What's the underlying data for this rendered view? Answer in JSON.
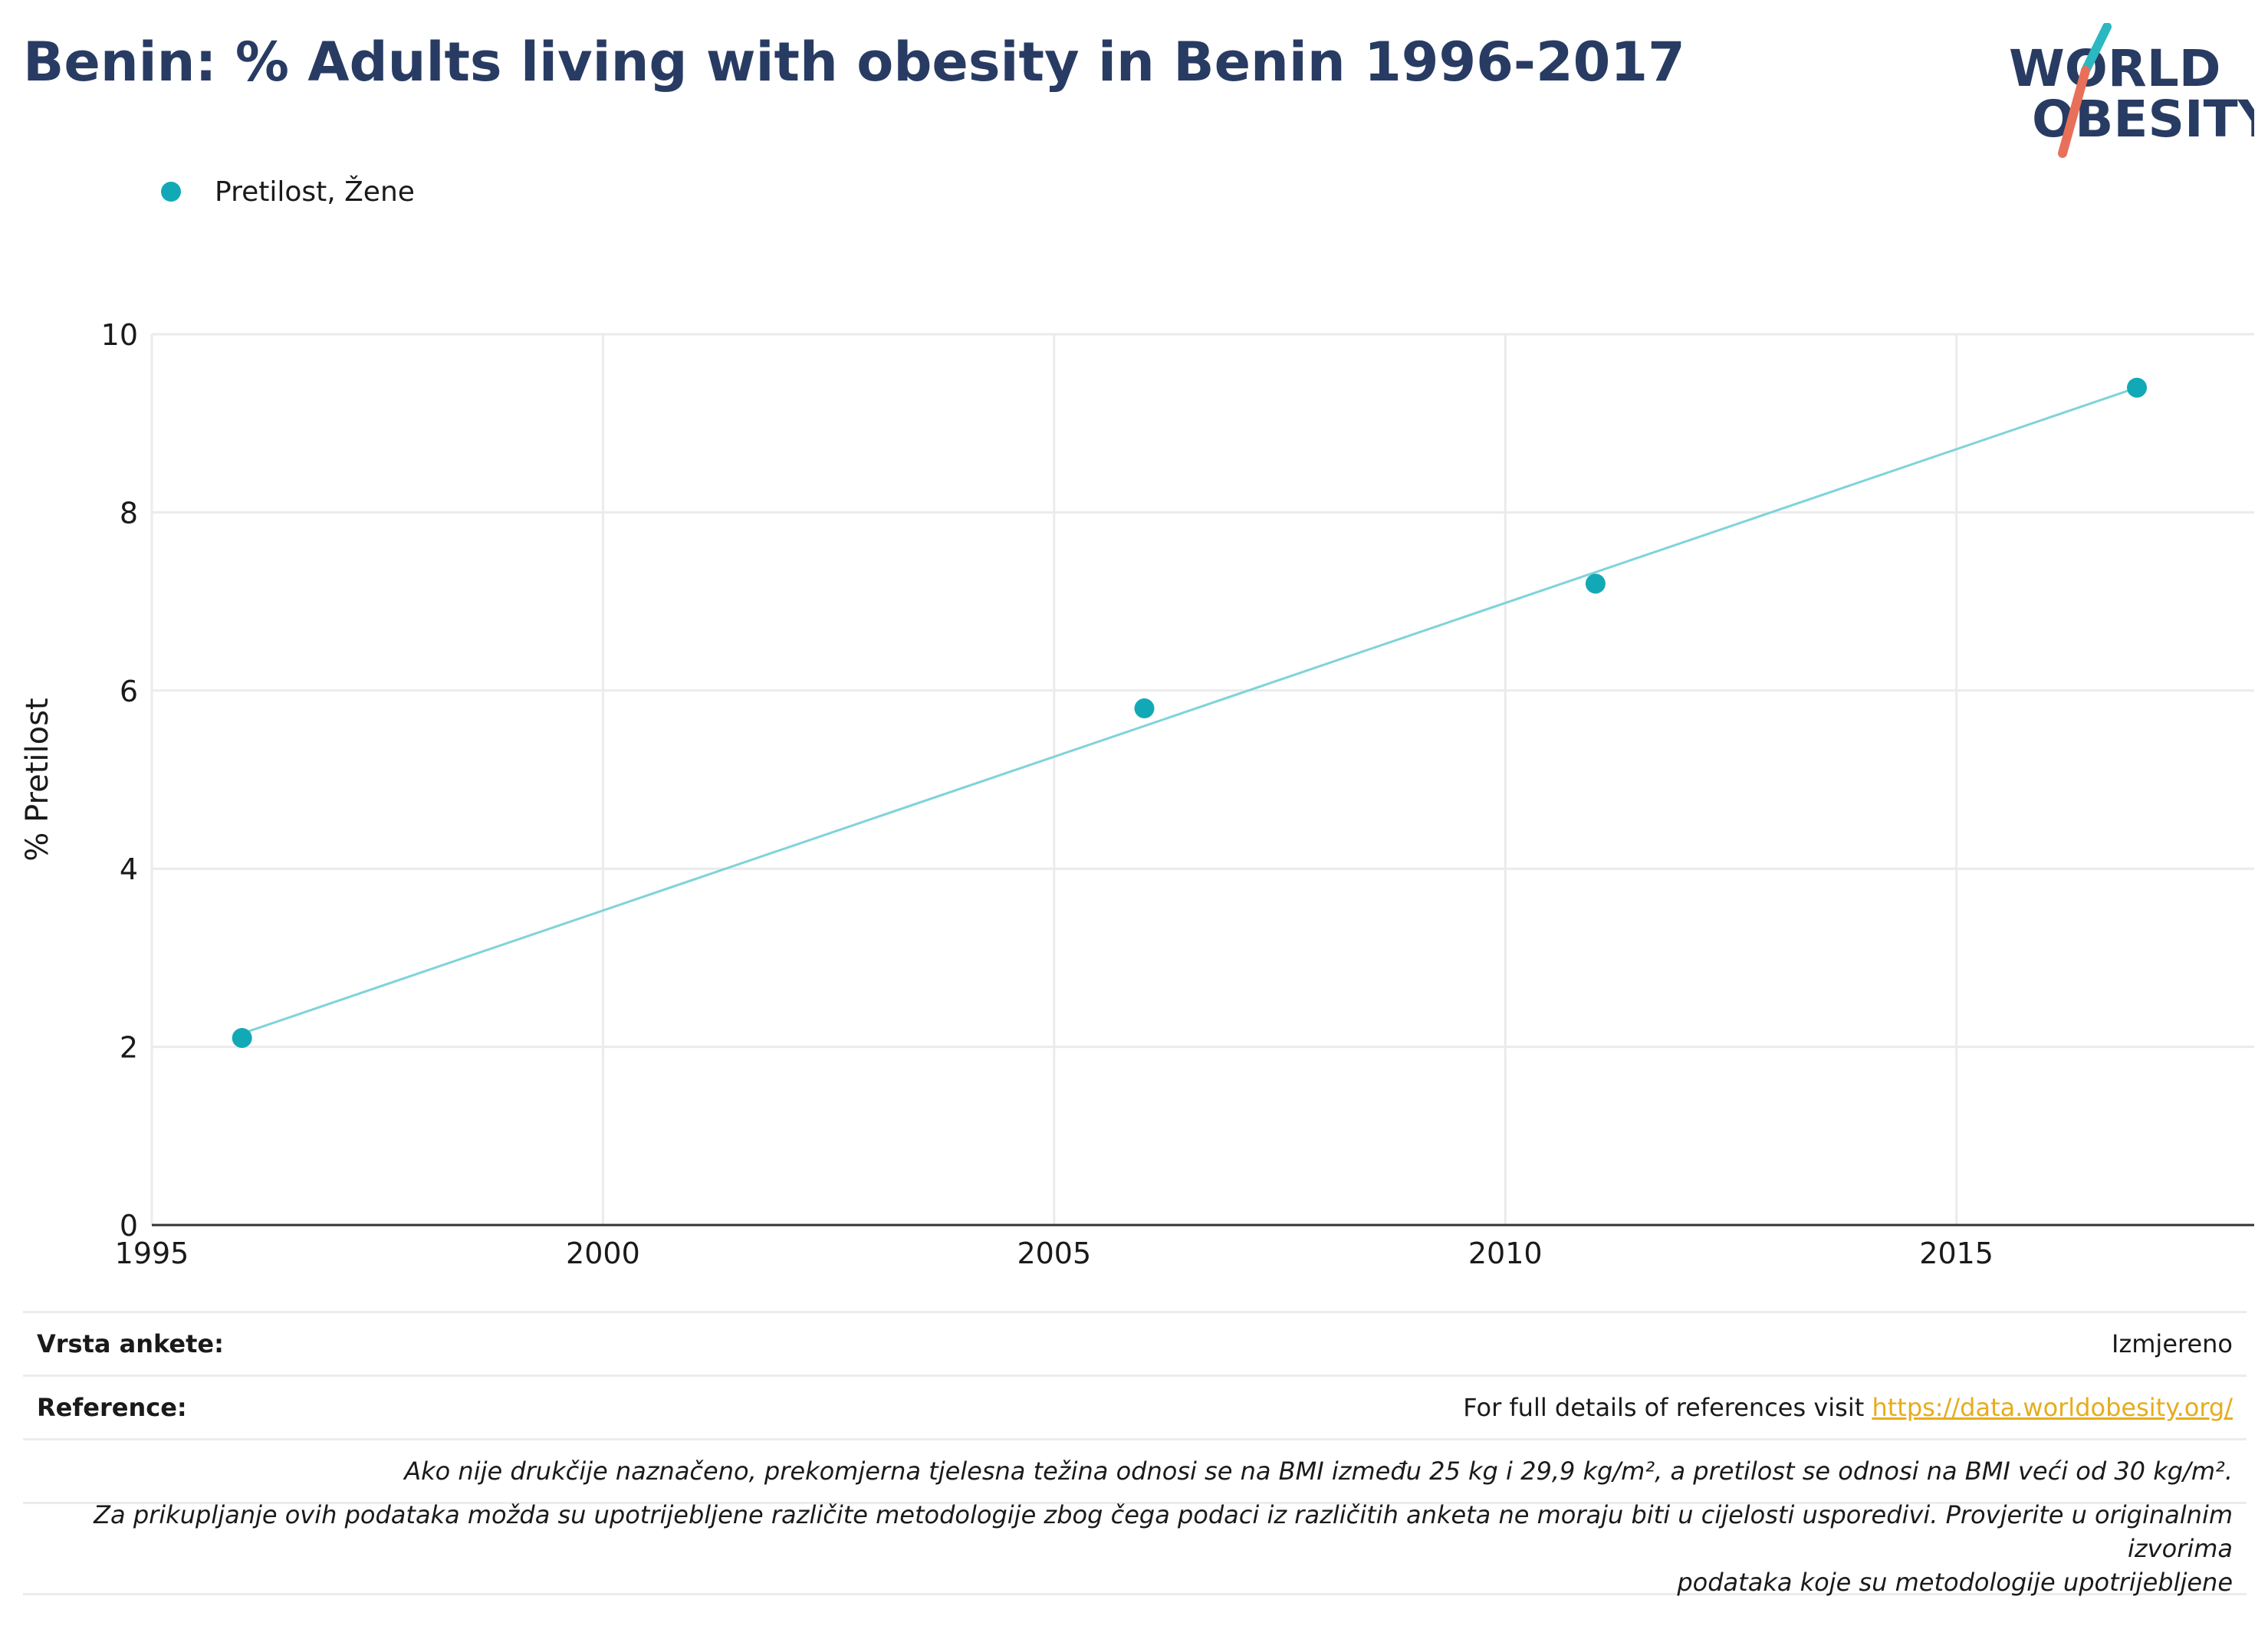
{
  "title": "Benin: % Adults living with obesity in Benin 1996-2017",
  "logo": {
    "line1": "WORLD",
    "line2": "OBESITY",
    "colors": {
      "text": "#283b63",
      "slash_top": "#2bb8c0",
      "slash_bottom": "#e8705a"
    }
  },
  "legend": {
    "label": "Pretilost, Žene"
  },
  "colors": {
    "points": "#12a9b7",
    "trend": "#7fd3da",
    "grid": "#ebebeb",
    "axis": "#333333"
  },
  "chart_data": {
    "type": "scatter",
    "title": "",
    "xlabel": "",
    "ylabel": "% Pretilost",
    "xlim": [
      1995,
      2018.3
    ],
    "ylim": [
      0,
      10
    ],
    "xticks": [
      1995,
      2000,
      2005,
      2010,
      2015
    ],
    "yticks": [
      0,
      2,
      4,
      6,
      8,
      10
    ],
    "grid": true,
    "legend_position": "top-left",
    "series": [
      {
        "name": "Pretilost, Žene",
        "x": [
          1996,
          2006,
          2011,
          2017
        ],
        "y": [
          2.1,
          5.8,
          7.2,
          9.4
        ]
      }
    ],
    "trendline": {
      "x": [
        1996,
        2017
      ],
      "y": [
        2.15,
        9.4
      ]
    }
  },
  "footer": {
    "survey_label": "Vrsta ankete:",
    "survey_value": "Izmjereno",
    "reference_label": "Reference:",
    "reference_text": "For full details of references visit ",
    "reference_link": "https://data.worldobesity.org/",
    "note1": "Ako nije drukčije naznačeno, prekomjerna tjelesna težina odnosi se na BMI između 25 kg i 29,9 kg/m², a pretilost se odnosi na BMI veći od 30 kg/m².",
    "note2_line1": "Za prikupljanje ovih podataka možda su upotrijebljene različite metodologije zbog čega podaci iz različitih anketa ne moraju biti u cijelosti usporedivi. Provjerite u originalnim izvorima",
    "note2_line2": "podataka koje su metodologije upotrijebljene"
  }
}
